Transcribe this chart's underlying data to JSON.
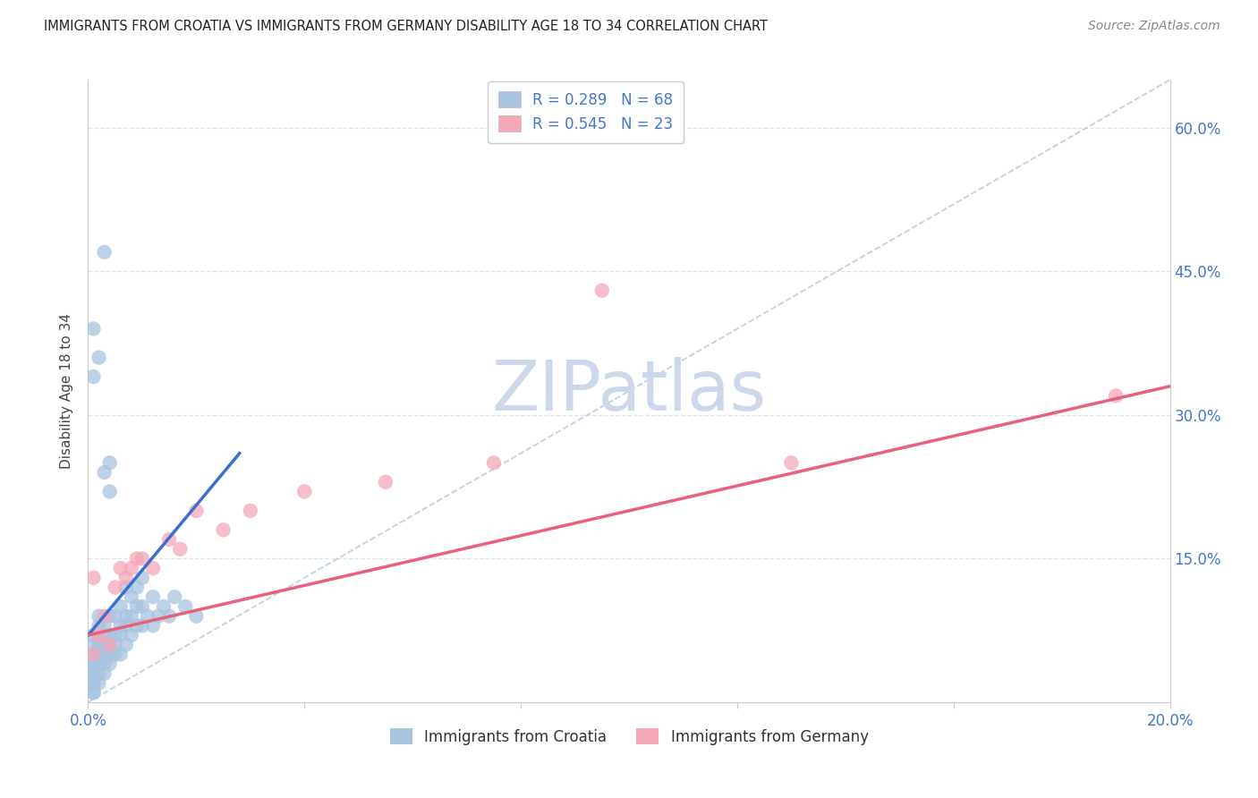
{
  "title": "IMMIGRANTS FROM CROATIA VS IMMIGRANTS FROM GERMANY DISABILITY AGE 18 TO 34 CORRELATION CHART",
  "source": "Source: ZipAtlas.com",
  "ylabel": "Disability Age 18 to 34",
  "xlim": [
    0.0,
    0.2
  ],
  "ylim": [
    0.0,
    0.65
  ],
  "croatia_R": 0.289,
  "croatia_N": 68,
  "germany_R": 0.545,
  "germany_N": 23,
  "croatia_color": "#a8c4e0",
  "germany_color": "#f4a7b9",
  "croatia_line_color": "#3a6fcc",
  "germany_line_color": "#e8607a",
  "ref_line_color": "#b8cce0",
  "watermark_color": "#ccd8ea",
  "axis_label_color": "#4477cc",
  "grid_color": "#dde4ee",
  "title_color": "#222222",
  "source_color": "#888888",
  "croatia_x": [
    0.001,
    0.001,
    0.001,
    0.001,
    0.001,
    0.001,
    0.001,
    0.001,
    0.001,
    0.001,
    0.001,
    0.001,
    0.002,
    0.002,
    0.002,
    0.002,
    0.002,
    0.002,
    0.002,
    0.002,
    0.003,
    0.003,
    0.003,
    0.003,
    0.003,
    0.003,
    0.004,
    0.004,
    0.004,
    0.004,
    0.004,
    0.005,
    0.005,
    0.005,
    0.005,
    0.006,
    0.006,
    0.006,
    0.006,
    0.007,
    0.007,
    0.007,
    0.007,
    0.008,
    0.008,
    0.008,
    0.009,
    0.009,
    0.009,
    0.01,
    0.01,
    0.01,
    0.011,
    0.012,
    0.012,
    0.013,
    0.014,
    0.015,
    0.016,
    0.018,
    0.02,
    0.001,
    0.001,
    0.002,
    0.003,
    0.003,
    0.004,
    0.004
  ],
  "croatia_y": [
    0.01,
    0.01,
    0.02,
    0.02,
    0.03,
    0.03,
    0.04,
    0.04,
    0.05,
    0.05,
    0.06,
    0.07,
    0.02,
    0.03,
    0.04,
    0.05,
    0.06,
    0.07,
    0.08,
    0.09,
    0.03,
    0.04,
    0.05,
    0.06,
    0.07,
    0.08,
    0.04,
    0.05,
    0.06,
    0.07,
    0.09,
    0.05,
    0.06,
    0.07,
    0.09,
    0.05,
    0.07,
    0.08,
    0.1,
    0.06,
    0.08,
    0.09,
    0.12,
    0.07,
    0.09,
    0.11,
    0.08,
    0.1,
    0.12,
    0.08,
    0.1,
    0.13,
    0.09,
    0.08,
    0.11,
    0.09,
    0.1,
    0.09,
    0.11,
    0.1,
    0.09,
    0.39,
    0.34,
    0.36,
    0.47,
    0.24,
    0.22,
    0.25
  ],
  "germany_x": [
    0.001,
    0.001,
    0.002,
    0.003,
    0.004,
    0.005,
    0.006,
    0.007,
    0.008,
    0.009,
    0.01,
    0.012,
    0.015,
    0.017,
    0.02,
    0.025,
    0.03,
    0.04,
    0.055,
    0.075,
    0.095,
    0.13,
    0.19
  ],
  "germany_y": [
    0.05,
    0.13,
    0.07,
    0.09,
    0.06,
    0.12,
    0.14,
    0.13,
    0.14,
    0.15,
    0.15,
    0.14,
    0.17,
    0.16,
    0.2,
    0.18,
    0.2,
    0.22,
    0.23,
    0.25,
    0.43,
    0.25,
    0.32
  ],
  "croatia_line_x": [
    0.0,
    0.028
  ],
  "croatia_line_y": [
    0.07,
    0.26
  ],
  "germany_line_x": [
    0.0,
    0.2
  ],
  "germany_line_y": [
    0.07,
    0.33
  ]
}
